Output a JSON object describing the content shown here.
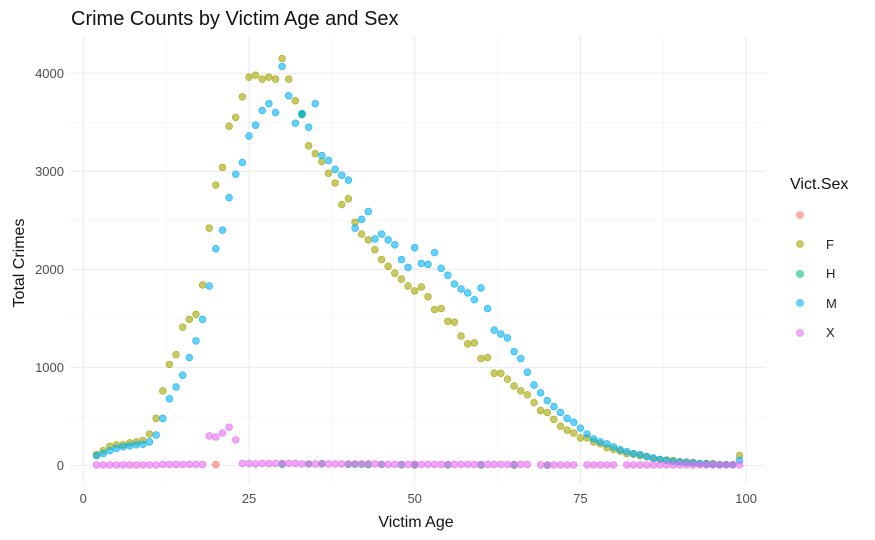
{
  "chart_data": {
    "type": "scatter",
    "title": "Crime Counts by Victim Age and Sex",
    "xlabel": "Victim Age",
    "ylabel": "Total Crimes",
    "xlim": [
      -2,
      103
    ],
    "ylim": [
      -200,
      4380
    ],
    "xticks": [
      0,
      25,
      50,
      75,
      100
    ],
    "yticks": [
      0,
      1000,
      2000,
      3000,
      4000
    ],
    "grid": true,
    "legend": {
      "title": "Vict.Sex",
      "position": "right"
    },
    "series": [
      {
        "name": "",
        "color": "#F8766D",
        "x": [
          20,
          50
        ],
        "y": [
          8,
          10
        ]
      },
      {
        "name": "F",
        "color": "#A3A500",
        "x": [
          2,
          3,
          4,
          5,
          6,
          7,
          8,
          9,
          10,
          11,
          12,
          13,
          14,
          15,
          16,
          17,
          18,
          19,
          20,
          21,
          22,
          23,
          24,
          25,
          26,
          27,
          28,
          29,
          30,
          31,
          32,
          33,
          34,
          35,
          36,
          37,
          38,
          39,
          40,
          41,
          42,
          43,
          44,
          45,
          46,
          47,
          48,
          49,
          50,
          51,
          52,
          53,
          54,
          55,
          56,
          57,
          58,
          59,
          60,
          61,
          62,
          63,
          64,
          65,
          66,
          67,
          68,
          69,
          70,
          71,
          72,
          73,
          74,
          75,
          76,
          77,
          78,
          79,
          80,
          81,
          82,
          83,
          84,
          85,
          86,
          87,
          88,
          89,
          90,
          91,
          92,
          93,
          94,
          95,
          96,
          97,
          98,
          99
        ],
        "y": [
          110,
          150,
          195,
          210,
          210,
          230,
          240,
          255,
          320,
          480,
          760,
          1030,
          1130,
          1410,
          1490,
          1540,
          1840,
          2420,
          2860,
          3040,
          3460,
          3550,
          3760,
          3960,
          3980,
          3940,
          3960,
          3940,
          4150,
          3940,
          3720,
          3580,
          3260,
          3180,
          3100,
          2980,
          2880,
          2660,
          2720,
          2480,
          2360,
          2300,
          2200,
          2100,
          2030,
          1960,
          1900,
          1830,
          1780,
          1820,
          1720,
          1590,
          1600,
          1470,
          1460,
          1320,
          1240,
          1250,
          1090,
          1100,
          940,
          940,
          880,
          810,
          760,
          720,
          640,
          560,
          540,
          470,
          400,
          360,
          330,
          280,
          280,
          240,
          220,
          180,
          165,
          145,
          120,
          115,
          100,
          90,
          70,
          60,
          55,
          50,
          38,
          35,
          30,
          20,
          20,
          18,
          10,
          8,
          8,
          100
        ]
      },
      {
        "name": "H",
        "color": "#00BF7D",
        "x": [
          30,
          33,
          34,
          36,
          40,
          41,
          42,
          43,
          45,
          48,
          50,
          55,
          60,
          65,
          70
        ],
        "y": [
          12,
          3580,
          14,
          18,
          10,
          12,
          12,
          8,
          10,
          6,
          5,
          5,
          4,
          3,
          2
        ]
      },
      {
        "name": "M",
        "color": "#00B0F6",
        "x": [
          2,
          3,
          4,
          5,
          6,
          7,
          8,
          9,
          10,
          11,
          12,
          13,
          14,
          15,
          16,
          17,
          18,
          19,
          20,
          21,
          22,
          23,
          24,
          25,
          26,
          27,
          28,
          29,
          30,
          31,
          32,
          33,
          34,
          35,
          36,
          37,
          38,
          39,
          40,
          41,
          42,
          43,
          44,
          45,
          46,
          47,
          48,
          49,
          50,
          51,
          52,
          53,
          54,
          55,
          56,
          57,
          58,
          59,
          60,
          61,
          62,
          63,
          64,
          65,
          66,
          67,
          68,
          69,
          70,
          71,
          72,
          73,
          74,
          75,
          76,
          77,
          78,
          79,
          80,
          81,
          82,
          83,
          84,
          85,
          86,
          87,
          88,
          89,
          90,
          91,
          92,
          93,
          94,
          95,
          96,
          97,
          98,
          99
        ],
        "y": [
          100,
          120,
          150,
          175,
          190,
          200,
          210,
          215,
          240,
          310,
          480,
          680,
          800,
          920,
          1100,
          1270,
          1490,
          1830,
          2210,
          2400,
          2730,
          2970,
          3090,
          3360,
          3470,
          3620,
          3690,
          3600,
          4070,
          3770,
          3490,
          3590,
          3450,
          3690,
          3160,
          3110,
          3020,
          2960,
          2910,
          2420,
          2510,
          2590,
          2310,
          2360,
          2300,
          2250,
          2100,
          2020,
          2220,
          2060,
          2050,
          2170,
          2010,
          1940,
          1850,
          1800,
          1760,
          1690,
          1810,
          1600,
          1380,
          1340,
          1300,
          1160,
          1090,
          950,
          820,
          740,
          660,
          600,
          540,
          480,
          440,
          380,
          320,
          270,
          240,
          220,
          190,
          160,
          140,
          120,
          110,
          90,
          75,
          60,
          50,
          40,
          35,
          30,
          25,
          20,
          15,
          10,
          8,
          8,
          5,
          50
        ]
      },
      {
        "name": "X",
        "color": "#E76BF3",
        "x": [
          2,
          3,
          4,
          5,
          6,
          7,
          8,
          9,
          10,
          11,
          12,
          13,
          14,
          15,
          16,
          17,
          18,
          19,
          20,
          21,
          22,
          23,
          24,
          25,
          26,
          27,
          28,
          29,
          30,
          31,
          32,
          33,
          34,
          35,
          36,
          37,
          38,
          39,
          40,
          41,
          42,
          43,
          44,
          45,
          46,
          47,
          48,
          49,
          50,
          51,
          52,
          53,
          54,
          55,
          56,
          57,
          58,
          59,
          60,
          61,
          62,
          63,
          64,
          65,
          66,
          67,
          69,
          70,
          71,
          72,
          73,
          74,
          76,
          77,
          78,
          79,
          80,
          82,
          83,
          84,
          85,
          86,
          87,
          88,
          89,
          90,
          91,
          92,
          93,
          94,
          95,
          96,
          97,
          98,
          99
        ],
        "y": [
          5,
          5,
          5,
          5,
          5,
          5,
          5,
          5,
          5,
          5,
          10,
          10,
          10,
          10,
          10,
          10,
          10,
          300,
          290,
          330,
          390,
          260,
          20,
          20,
          15,
          20,
          20,
          20,
          20,
          20,
          20,
          15,
          15,
          15,
          15,
          15,
          15,
          15,
          15,
          15,
          15,
          15,
          15,
          10,
          10,
          10,
          10,
          10,
          10,
          10,
          10,
          10,
          10,
          10,
          10,
          10,
          10,
          10,
          10,
          10,
          10,
          10,
          10,
          10,
          10,
          10,
          5,
          5,
          5,
          5,
          5,
          5,
          5,
          5,
          5,
          5,
          5,
          5,
          5,
          5,
          5,
          5,
          5,
          5,
          5,
          5,
          5,
          5,
          5,
          5,
          5,
          5,
          5,
          5,
          5
        ]
      }
    ]
  }
}
